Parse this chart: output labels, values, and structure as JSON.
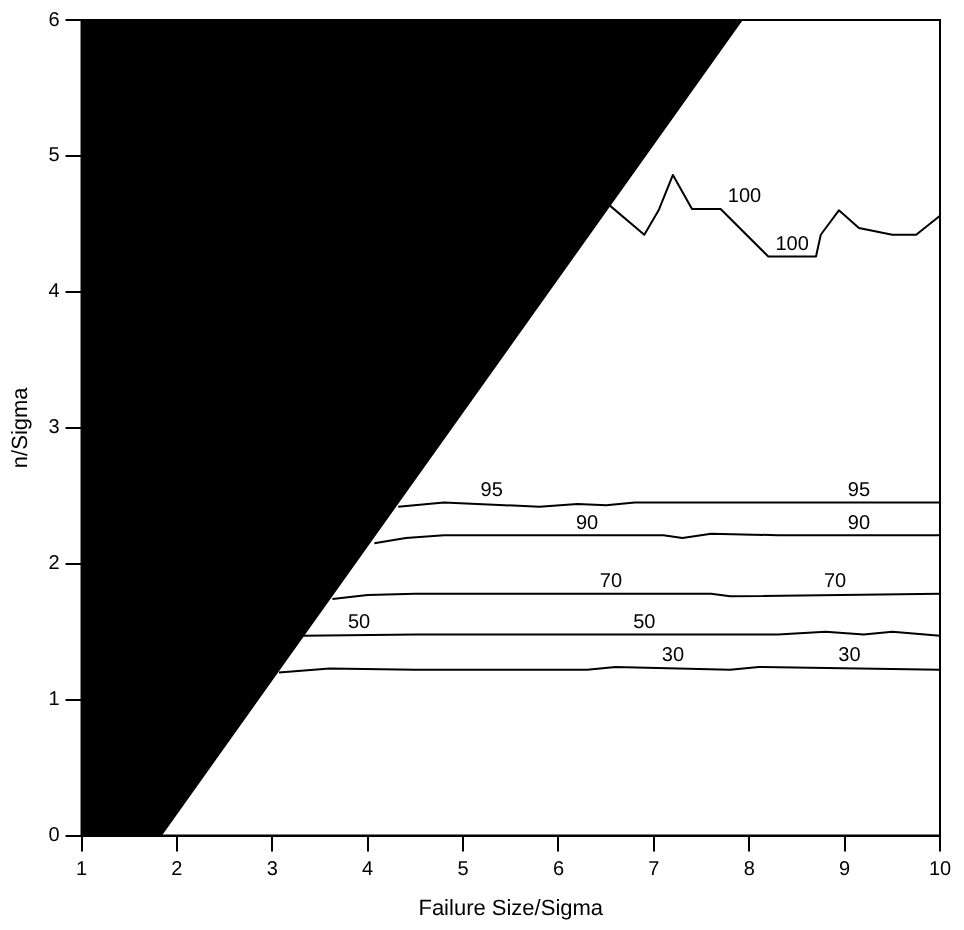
{
  "chart_data": {
    "type": "line",
    "xlabel": "Failure Size/Sigma",
    "ylabel": "n/Sigma",
    "xlim": [
      1,
      10
    ],
    "xticks": [
      1,
      2,
      3,
      4,
      5,
      6,
      7,
      8,
      9,
      10
    ],
    "ylim": [
      0,
      6
    ],
    "yticks": [
      0,
      1,
      2,
      3,
      4,
      5,
      6
    ],
    "grid": false,
    "legend": false,
    "marker": "none",
    "line_style": "solid",
    "series": [
      {
        "type": "area",
        "color": "#000000",
        "x": [
          1,
          1.83,
          7.92,
          1
        ],
        "values": [
          0,
          0,
          6,
          6
        ]
      },
      {
        "name": "30",
        "color": "#000000",
        "x": [
          3.07,
          3.6,
          4.5,
          5.5,
          6.3,
          6.6,
          7.8,
          8.1,
          10
        ],
        "values": [
          1.2,
          1.23,
          1.22,
          1.22,
          1.22,
          1.24,
          1.22,
          1.24,
          1.22
        ]
      },
      {
        "name": "50",
        "color": "#000000",
        "x": [
          3.32,
          4.5,
          5.5,
          8.3,
          8.8,
          9.2,
          9.5,
          10
        ],
        "values": [
          1.47,
          1.48,
          1.48,
          1.48,
          1.5,
          1.48,
          1.5,
          1.47
        ]
      },
      {
        "name": "70",
        "color": "#000000",
        "x": [
          3.63,
          4,
          4.5,
          5.5,
          7.6,
          7.8,
          10
        ],
        "values": [
          1.74,
          1.77,
          1.78,
          1.78,
          1.78,
          1.76,
          1.78
        ]
      },
      {
        "name": "90",
        "color": "#000000",
        "x": [
          4.07,
          4.4,
          4.8,
          5.5,
          7.1,
          7.3,
          7.6,
          8.3,
          10
        ],
        "values": [
          2.15,
          2.19,
          2.21,
          2.21,
          2.21,
          2.19,
          2.22,
          2.21,
          2.21
        ]
      },
      {
        "name": "95",
        "color": "#000000",
        "x": [
          4.32,
          4.8,
          5.8,
          6.2,
          6.5,
          6.8,
          7.5,
          8.3,
          10
        ],
        "values": [
          2.42,
          2.45,
          2.42,
          2.44,
          2.43,
          2.45,
          2.45,
          2.45,
          2.45
        ]
      },
      {
        "name": "100",
        "color": "#000000",
        "x": [
          6.53,
          6.9,
          7.05,
          7.2,
          7.4,
          7.7,
          8.2,
          8.7,
          8.75,
          8.94,
          9.15,
          9.5,
          9.75,
          10
        ],
        "values": [
          4.64,
          4.42,
          4.6,
          4.86,
          4.61,
          4.61,
          4.26,
          4.26,
          4.42,
          4.6,
          4.47,
          4.42,
          4.42,
          4.56
        ]
      }
    ]
  }
}
